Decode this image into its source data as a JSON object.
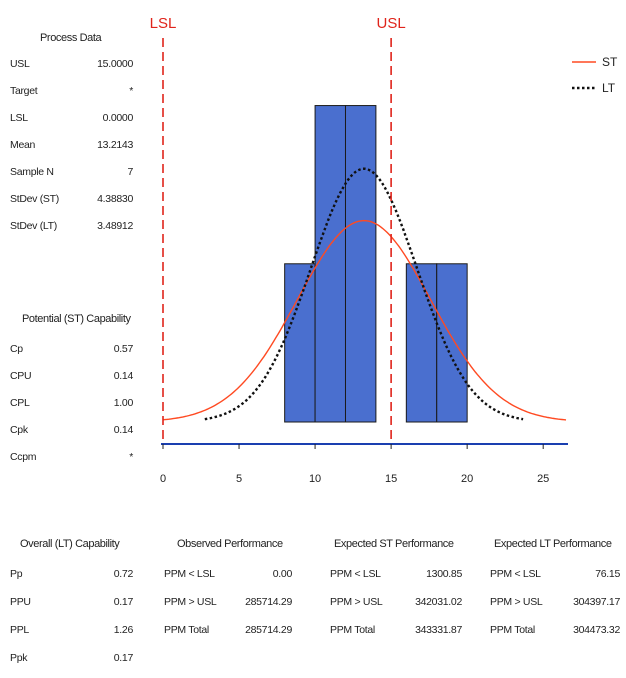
{
  "colors": {
    "bar_fill": "#4a6fcf",
    "bar_stroke": "#1a1a1a",
    "spec_line": "#e0241b",
    "st_curve": "#ff4a22",
    "lt_curve": "#111111",
    "axis_line": "#1a3fb0"
  },
  "process_data": {
    "title": "Process Data",
    "rows": [
      {
        "label": "USL",
        "value": "15.0000"
      },
      {
        "label": "Target",
        "value": "*"
      },
      {
        "label": "LSL",
        "value": "0.0000"
      },
      {
        "label": "Mean",
        "value": "13.2143"
      },
      {
        "label": "Sample N",
        "value": "7"
      },
      {
        "label": "StDev (ST)",
        "value": "4.38830"
      },
      {
        "label": "StDev (LT)",
        "value": "3.48912"
      }
    ]
  },
  "potential_capability": {
    "title": "Potential (ST) Capability",
    "rows": [
      {
        "label": "Cp",
        "value": "0.57"
      },
      {
        "label": "CPU",
        "value": "0.14"
      },
      {
        "label": "CPL",
        "value": "1.00"
      },
      {
        "label": "Cpk",
        "value": "0.14"
      },
      {
        "label": "Ccpm",
        "value": "*"
      }
    ]
  },
  "overall_capability": {
    "title": "Overall (LT) Capability",
    "rows": [
      {
        "label": "Pp",
        "value": "0.72"
      },
      {
        "label": "PPU",
        "value": "0.17"
      },
      {
        "label": "PPL",
        "value": "1.26"
      },
      {
        "label": "Ppk",
        "value": "0.17"
      }
    ]
  },
  "observed_performance": {
    "title": "Observed Performance",
    "rows": [
      {
        "label": "PPM < LSL",
        "value": "0.00"
      },
      {
        "label": "PPM > USL",
        "value": "285714.29"
      },
      {
        "label": "PPM Total",
        "value": "285714.29"
      }
    ]
  },
  "expected_st_performance": {
    "title": "Expected ST Performance",
    "rows": [
      {
        "label": "PPM < LSL",
        "value": "1300.85"
      },
      {
        "label": "PPM > USL",
        "value": "342031.02"
      },
      {
        "label": "PPM Total",
        "value": "343331.87"
      }
    ]
  },
  "expected_lt_performance": {
    "title": "Expected LT Performance",
    "rows": [
      {
        "label": "PPM < LSL",
        "value": "76.15"
      },
      {
        "label": "PPM > USL",
        "value": "304397.17"
      },
      {
        "label": "PPM Total",
        "value": "304473.32"
      }
    ]
  },
  "chart_data": {
    "type": "bar",
    "bins": [
      {
        "from": 8,
        "to": 10,
        "count": 1
      },
      {
        "from": 10,
        "to": 12,
        "count": 2
      },
      {
        "from": 12,
        "to": 14,
        "count": 2
      },
      {
        "from": 16,
        "to": 18,
        "count": 1
      },
      {
        "from": 18,
        "to": 20,
        "count": 1
      }
    ],
    "xlim": [
      0,
      26.5
    ],
    "ylim": [
      0,
      2.25
    ],
    "x_ticks": [
      0,
      5,
      10,
      15,
      20,
      25
    ],
    "spec_limits": [
      {
        "name": "LSL",
        "value": 0
      },
      {
        "name": "USL",
        "value": 15
      }
    ],
    "mean": 13.2143,
    "sample_n": 7,
    "bin_width": 2,
    "stdev_st": 4.3883,
    "stdev_lt": 3.48912,
    "legend": [
      {
        "name": "ST",
        "style": "solid"
      },
      {
        "name": "LT",
        "style": "dotted"
      }
    ],
    "legend_position": "top-right",
    "grid": false
  }
}
